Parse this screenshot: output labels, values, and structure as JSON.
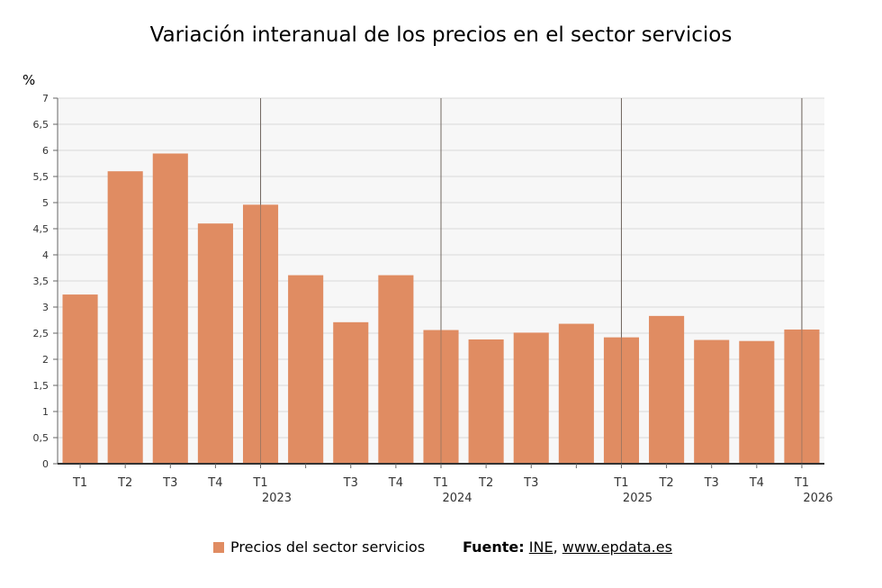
{
  "chart_data": {
    "type": "bar",
    "title": "Variación interanual de los precios en el sector servicios",
    "ylabel": "%",
    "ylim": [
      0,
      7
    ],
    "yticks": [
      "0",
      "0,5",
      "1",
      "1,5",
      "2",
      "2,5",
      "3",
      "3,5",
      "4",
      "4,5",
      "5",
      "5,5",
      "6",
      "6,5",
      "7"
    ],
    "grid": true,
    "categories": [
      "T1",
      "T2",
      "T3",
      "T4",
      "T1",
      "",
      "T3",
      "T4",
      "T1",
      "T2",
      "T3",
      "",
      "T1",
      "T2",
      "T3",
      "T4",
      "T1"
    ],
    "year_labels": [
      "",
      "",
      "",
      "",
      "2023",
      "",
      "",
      "",
      "2024",
      "",
      "",
      "",
      "2025",
      "",
      "",
      "",
      "2026"
    ],
    "series": [
      {
        "name": "Precios del sector servicios",
        "color": "#e08c62",
        "values": [
          3.24,
          5.6,
          5.94,
          4.6,
          4.96,
          3.61,
          2.71,
          3.61,
          2.56,
          2.38,
          2.51,
          2.68,
          2.42,
          2.83,
          2.37,
          2.35,
          2.57
        ]
      }
    ]
  },
  "legend": {
    "label": "Precios del sector servicios",
    "color": "#e08c62"
  },
  "source": {
    "label": "Fuente:",
    "link1": "INE",
    "separator": ",",
    "link2": "www.epdata.es"
  }
}
